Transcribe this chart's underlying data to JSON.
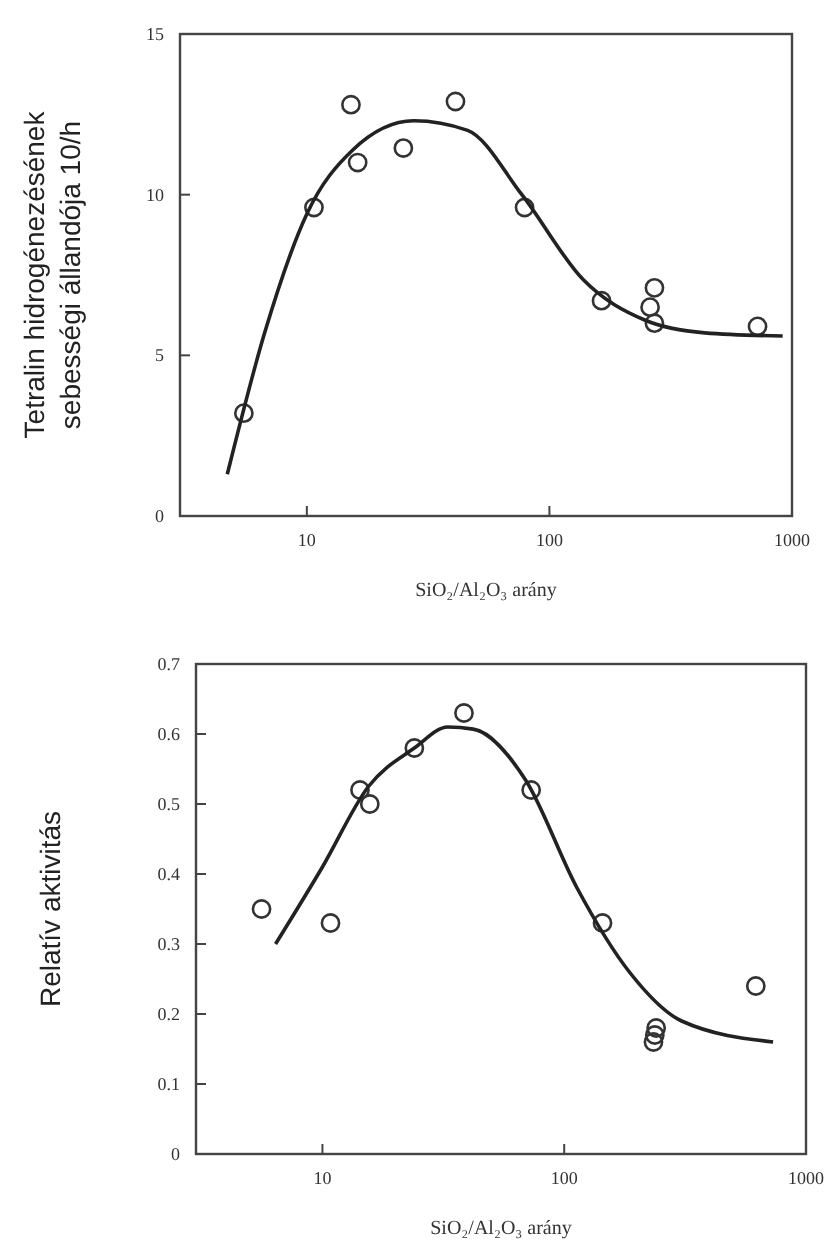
{
  "chart_data": [
    {
      "type": "scatter",
      "xlabel": "SiO₂/Al₂O₃ arány",
      "ylabel": "Tetralin hidrogénezésének sebességi állandója 10/h",
      "log": "x",
      "xlim": [
        3,
        1000
      ],
      "xticks": [
        10,
        100,
        1000
      ],
      "ylim": [
        0,
        15
      ],
      "yticks": [
        0,
        5,
        10,
        15
      ],
      "grid": false,
      "series": [
        {
          "marker": "circle",
          "color": "#333333",
          "x": [
            5.5,
            10.7,
            15.2,
            16.2,
            25,
            41,
            79,
            164,
            271,
            260,
            271,
            721
          ],
          "values": [
            3.2,
            9.6,
            12.8,
            11.0,
            11.45,
            12.9,
            9.6,
            6.7,
            7.1,
            6.5,
            6.0,
            5.9
          ]
        },
        {
          "type": "line",
          "line_style": "solid",
          "color": "#222222",
          "x": [
            4.7,
            6.7,
            10,
            15.5,
            27.6,
            46,
            77,
            138,
            247,
            437,
            915
          ],
          "values": [
            1.3,
            5.7,
            9.4,
            11.4,
            12.3,
            12.0,
            10.0,
            7.35,
            6.1,
            5.7,
            5.6
          ]
        }
      ]
    },
    {
      "type": "scatter",
      "xlabel": "SiO₂/Al₂O₃ arány",
      "ylabel": "Relatív aktivitás",
      "log": "x",
      "xlim": [
        3,
        1000
      ],
      "xticks": [
        10,
        100,
        1000
      ],
      "ylim": [
        0,
        0.7
      ],
      "yticks": [
        0,
        0.1,
        0.2,
        0.3,
        0.4,
        0.5,
        0.6,
        0.7
      ],
      "grid": false,
      "series": [
        {
          "marker": "circle",
          "color": "#333333",
          "x": [
            5.6,
            10.8,
            14.3,
            15.7,
            24,
            38.5,
            73,
            144,
            240,
            237,
            234,
            620
          ],
          "values": [
            0.35,
            0.33,
            0.52,
            0.5,
            0.58,
            0.63,
            0.52,
            0.33,
            0.18,
            0.17,
            0.16,
            0.24
          ]
        },
        {
          "type": "line",
          "line_style": "solid",
          "color": "#222222",
          "x": [
            6.4,
            10,
            15.5,
            24,
            33,
            42,
            69,
            113,
            186,
            306,
            731
          ],
          "values": [
            0.3,
            0.41,
            0.525,
            0.58,
            0.61,
            0.607,
            0.535,
            0.38,
            0.26,
            0.19,
            0.16
          ]
        }
      ]
    }
  ]
}
